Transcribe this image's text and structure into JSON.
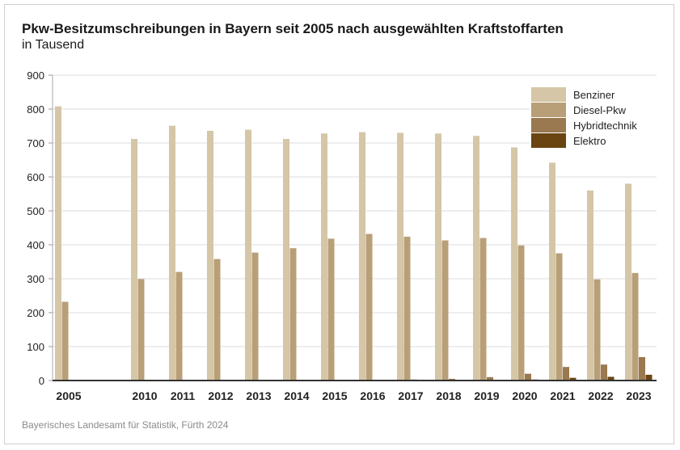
{
  "chart_data": {
    "type": "bar",
    "title": "Pkw-Besitzumschreibungen in Bayern seit 2005 nach ausgewählten Kraftstoffarten",
    "subtitle": "in Tausend",
    "source": "Bayerisches Landesamt für Statistik, Fürth 2024",
    "categories": [
      "2005",
      "2010",
      "2011",
      "2012",
      "2013",
      "2014",
      "2015",
      "2016",
      "2017",
      "2018",
      "2019",
      "2020",
      "2021",
      "2022",
      "2023"
    ],
    "ylim": [
      0,
      900
    ],
    "yticks": [
      0,
      100,
      200,
      300,
      400,
      500,
      600,
      700,
      800,
      900
    ],
    "grid": true,
    "legend_position": "top-right",
    "series": [
      {
        "name": "Benziner",
        "color": "#d4c6a6",
        "values": [
          808,
          712,
          751,
          736,
          739,
          712,
          728,
          732,
          730,
          728,
          721,
          687,
          642,
          560,
          580
        ]
      },
      {
        "name": "Diesel-Pkw",
        "color": "#b89f78",
        "values": [
          232,
          299,
          320,
          358,
          377,
          390,
          418,
          432,
          424,
          413,
          420,
          398,
          375,
          298,
          317
        ]
      },
      {
        "name": "Hybridtechnik",
        "color": "#9a7850",
        "values": [
          0,
          0,
          0,
          0.5,
          1,
          1.5,
          2,
          2,
          3,
          5,
          10,
          20,
          40,
          47,
          69
        ]
      },
      {
        "name": "Elektro",
        "color": "#6a4512",
        "values": [
          0,
          0,
          0,
          0,
          0,
          0,
          0,
          0,
          0.5,
          0.5,
          1,
          3,
          8,
          11,
          17
        ]
      }
    ]
  }
}
